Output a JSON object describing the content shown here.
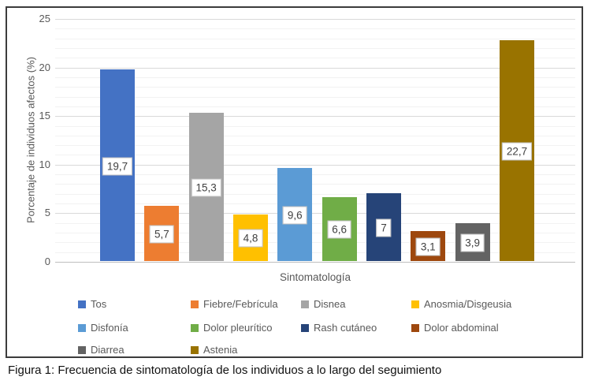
{
  "figure": {
    "caption": "Figura 1: Frecuencia de sintomatología de los individuos a lo largo del seguimiento"
  },
  "chart_data": {
    "type": "bar",
    "title": "",
    "xlabel": "Sintomatología",
    "ylabel": "Porcentaje de individuos afectos (%)",
    "ylim": [
      0,
      25
    ],
    "yticks": [
      0,
      5,
      10,
      15,
      20,
      25
    ],
    "ytick_minor_step": 1,
    "grid": "horizontal major + minor",
    "legend_position": "bottom",
    "decimal_separator": ",",
    "series": [
      {
        "name": "Tos",
        "value": 19.7,
        "label": "19,7",
        "color": "#4472c4"
      },
      {
        "name": "Fiebre/Febrícula",
        "value": 5.7,
        "label": "5,7",
        "color": "#ed7d31"
      },
      {
        "name": "Disnea",
        "value": 15.3,
        "label": "15,3",
        "color": "#a5a5a5"
      },
      {
        "name": "Anosmia/Disgeusia",
        "value": 4.8,
        "label": "4,8",
        "color": "#ffc000"
      },
      {
        "name": "Disfonía",
        "value": 9.6,
        "label": "9,6",
        "color": "#5b9bd5"
      },
      {
        "name": "Dolor pleurítico",
        "value": 6.6,
        "label": "6,6",
        "color": "#70ad47"
      },
      {
        "name": "Rash cutáneo",
        "value": 7,
        "label": "7",
        "color": "#264478"
      },
      {
        "name": "Dolor abdominal",
        "value": 3.1,
        "label": "3,1",
        "color": "#9e480e"
      },
      {
        "name": "Diarrea",
        "value": 3.9,
        "label": "3,9",
        "color": "#636363"
      },
      {
        "name": "Astenia",
        "value": 22.7,
        "label": "22,7",
        "color": "#997300"
      }
    ],
    "style_colors": {
      "gridline_major": "#d9d9d9",
      "gridline_minor": "#f2f2f2",
      "axis_baseline": "#bfbfbf",
      "axis_text": "#595959",
      "data_label_text": "#404040",
      "figure_border": "#3c3c3c"
    }
  }
}
